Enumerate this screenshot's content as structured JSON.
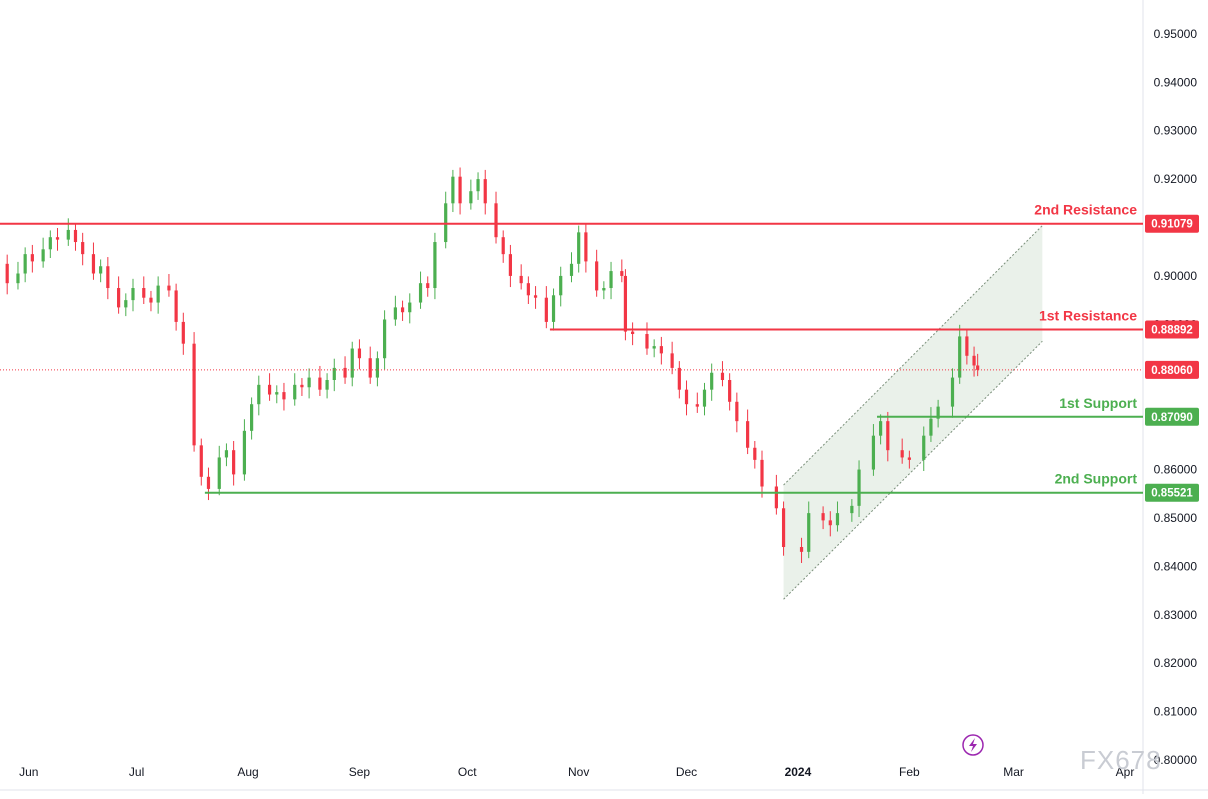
{
  "chart_data": {
    "type": "candlestick",
    "y_axis": {
      "ticks": [
        "0.95000",
        "0.94000",
        "0.93000",
        "0.92000",
        "0.91000",
        "0.90000",
        "0.89000",
        "0.88000",
        "0.87000",
        "0.86000",
        "0.85000",
        "0.84000",
        "0.83000",
        "0.82000",
        "0.81000",
        "0.80000"
      ],
      "ylim": [
        0.8,
        0.957
      ]
    },
    "x_axis": {
      "ticks": [
        "Jun",
        "Jul",
        "Aug",
        "Sep",
        "Oct",
        "Nov",
        "Dec",
        "2024",
        "Feb",
        "Mar",
        "Apr"
      ],
      "xlim": [
        "2023-05-24",
        "2024-04-06"
      ]
    },
    "current_price": {
      "value": 0.8806,
      "label": "0.88060",
      "color": "#f23645"
    },
    "levels": [
      {
        "name": "2nd Resistance",
        "value": 0.91079,
        "label": "0.91079",
        "color": "#f23645",
        "start": "2023-05-24"
      },
      {
        "name": "1st Resistance",
        "value": 0.88892,
        "label": "0.88892",
        "color": "#f23645",
        "start": "2023-10-24"
      },
      {
        "name": "1st Support",
        "value": 0.8709,
        "label": "0.87090",
        "color": "#4caf50",
        "start": "2024-01-23"
      },
      {
        "name": "2nd Support",
        "value": 0.85521,
        "label": "0.85521",
        "color": "#4caf50",
        "start": "2023-07-20"
      }
    ],
    "channel": {
      "lower": [
        [
          "2023-12-28",
          0.8332
        ],
        [
          "2024-03-09",
          0.8865
        ]
      ],
      "upper": [
        [
          "2023-12-28",
          0.8568
        ],
        [
          "2024-03-09",
          0.9104
        ]
      ],
      "fill": "#e3ece3",
      "stroke": "#7a8f7a"
    },
    "candle_colors": {
      "up": "#4caf50",
      "down": "#f23645"
    },
    "close_series": [
      [
        "2023-05-24",
        0.9025
      ],
      [
        "2023-05-26",
        0.8985
      ],
      [
        "2023-05-29",
        0.9005
      ],
      [
        "2023-05-31",
        0.9045
      ],
      [
        "2023-06-02",
        0.903
      ],
      [
        "2023-06-05",
        0.9055
      ],
      [
        "2023-06-07",
        0.908
      ],
      [
        "2023-06-09",
        0.9075
      ],
      [
        "2023-06-12",
        0.9095
      ],
      [
        "2023-06-14",
        0.907
      ],
      [
        "2023-06-16",
        0.9045
      ],
      [
        "2023-06-19",
        0.9005
      ],
      [
        "2023-06-21",
        0.902
      ],
      [
        "2023-06-23",
        0.8975
      ],
      [
        "2023-06-26",
        0.8935
      ],
      [
        "2023-06-28",
        0.895
      ],
      [
        "2023-06-30",
        0.8975
      ],
      [
        "2023-07-03",
        0.8955
      ],
      [
        "2023-07-05",
        0.8945
      ],
      [
        "2023-07-07",
        0.898
      ],
      [
        "2023-07-10",
        0.897
      ],
      [
        "2023-07-12",
        0.8905
      ],
      [
        "2023-07-14",
        0.886
      ],
      [
        "2023-07-17",
        0.865
      ],
      [
        "2023-07-19",
        0.8585
      ],
      [
        "2023-07-21",
        0.856
      ],
      [
        "2023-07-24",
        0.8625
      ],
      [
        "2023-07-26",
        0.864
      ],
      [
        "2023-07-28",
        0.859
      ],
      [
        "2023-07-31",
        0.868
      ],
      [
        "2023-08-02",
        0.8735
      ],
      [
        "2023-08-04",
        0.8775
      ],
      [
        "2023-08-07",
        0.8755
      ],
      [
        "2023-08-09",
        0.876
      ],
      [
        "2023-08-11",
        0.8745
      ],
      [
        "2023-08-14",
        0.8775
      ],
      [
        "2023-08-16",
        0.877
      ],
      [
        "2023-08-18",
        0.879
      ],
      [
        "2023-08-21",
        0.8765
      ],
      [
        "2023-08-23",
        0.8785
      ],
      [
        "2023-08-25",
        0.881
      ],
      [
        "2023-08-28",
        0.879
      ],
      [
        "2023-08-30",
        0.885
      ],
      [
        "2023-09-01",
        0.883
      ],
      [
        "2023-09-04",
        0.879
      ],
      [
        "2023-09-06",
        0.883
      ],
      [
        "2023-09-08",
        0.891
      ],
      [
        "2023-09-11",
        0.8935
      ],
      [
        "2023-09-13",
        0.8925
      ],
      [
        "2023-09-15",
        0.8945
      ],
      [
        "2023-09-18",
        0.8985
      ],
      [
        "2023-09-20",
        0.8975
      ],
      [
        "2023-09-22",
        0.907
      ],
      [
        "2023-09-25",
        0.915
      ],
      [
        "2023-09-27",
        0.9205
      ],
      [
        "2023-09-29",
        0.915
      ],
      [
        "2023-10-02",
        0.9175
      ],
      [
        "2023-10-04",
        0.92
      ],
      [
        "2023-10-06",
        0.915
      ],
      [
        "2023-10-09",
        0.908
      ],
      [
        "2023-10-11",
        0.9045
      ],
      [
        "2023-10-13",
        0.9
      ],
      [
        "2023-10-16",
        0.8985
      ],
      [
        "2023-10-18",
        0.896
      ],
      [
        "2023-10-20",
        0.8955
      ],
      [
        "2023-10-23",
        0.8905
      ],
      [
        "2023-10-25",
        0.896
      ],
      [
        "2023-10-27",
        0.9
      ],
      [
        "2023-10-30",
        0.9025
      ],
      [
        "2023-11-01",
        0.909
      ],
      [
        "2023-11-03",
        0.903
      ],
      [
        "2023-11-06",
        0.897
      ],
      [
        "2023-11-08",
        0.8975
      ],
      [
        "2023-11-10",
        0.901
      ],
      [
        "2023-11-13",
        0.9
      ],
      [
        "2023-11-14",
        0.8885
      ],
      [
        "2023-11-16",
        0.888
      ],
      [
        "2023-11-20",
        0.885
      ],
      [
        "2023-11-22",
        0.8855
      ],
      [
        "2023-11-24",
        0.884
      ],
      [
        "2023-11-27",
        0.881
      ],
      [
        "2023-11-29",
        0.8765
      ],
      [
        "2023-12-01",
        0.8735
      ],
      [
        "2023-12-04",
        0.873
      ],
      [
        "2023-12-06",
        0.8765
      ],
      [
        "2023-12-08",
        0.88
      ],
      [
        "2023-12-11",
        0.8785
      ],
      [
        "2023-12-13",
        0.874
      ],
      [
        "2023-12-15",
        0.87
      ],
      [
        "2023-12-18",
        0.8645
      ],
      [
        "2023-12-20",
        0.862
      ],
      [
        "2023-12-22",
        0.8565
      ],
      [
        "2023-12-26",
        0.852
      ],
      [
        "2023-12-28",
        0.844
      ],
      [
        "2024-01-02",
        0.843
      ],
      [
        "2024-01-04",
        0.851
      ],
      [
        "2024-01-08",
        0.8495
      ],
      [
        "2024-01-10",
        0.8485
      ],
      [
        "2024-01-12",
        0.851
      ],
      [
        "2024-01-16",
        0.8525
      ],
      [
        "2024-01-18",
        0.86
      ],
      [
        "2024-01-22",
        0.867
      ],
      [
        "2024-01-24",
        0.87
      ],
      [
        "2024-01-26",
        0.864
      ],
      [
        "2024-01-30",
        0.8625
      ],
      [
        "2024-02-01",
        0.862
      ],
      [
        "2024-02-05",
        0.867
      ],
      [
        "2024-02-07",
        0.8705
      ],
      [
        "2024-02-09",
        0.873
      ],
      [
        "2024-02-13",
        0.879
      ],
      [
        "2024-02-15",
        0.8875
      ],
      [
        "2024-02-17",
        0.8835
      ],
      [
        "2024-02-19",
        0.8815
      ],
      [
        "2024-02-20",
        0.8806
      ]
    ]
  },
  "watermark": "FX678",
  "icons": {
    "brand": "lightning-bolt-icon"
  }
}
